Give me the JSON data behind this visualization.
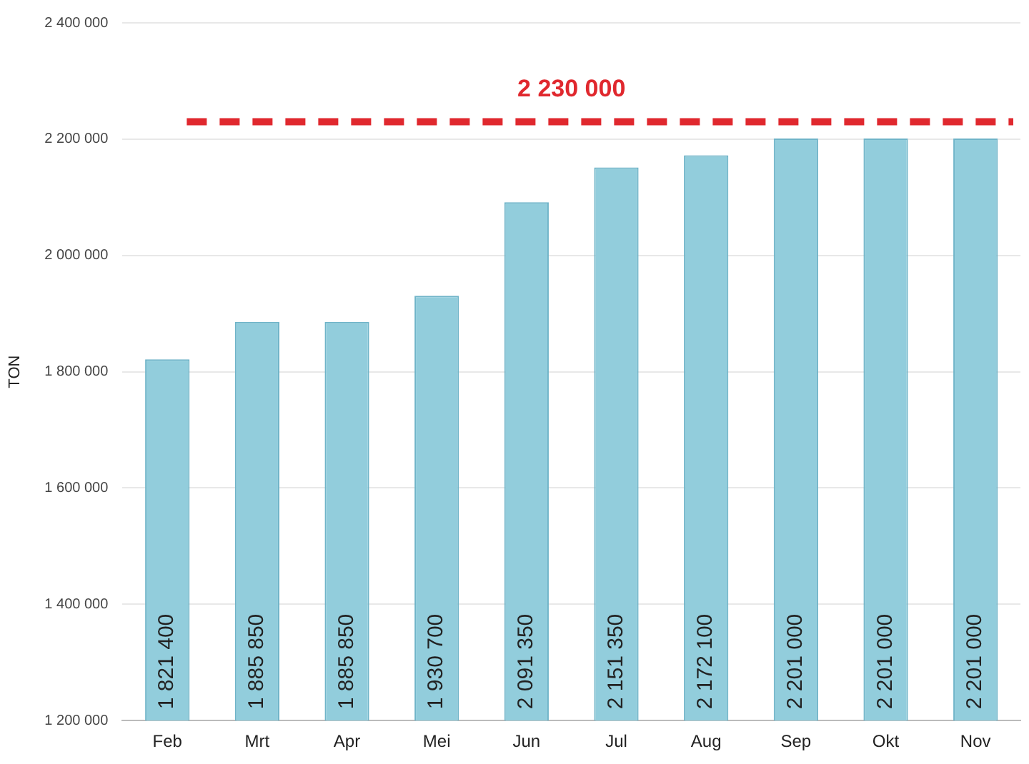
{
  "chart_data": {
    "type": "bar",
    "ylabel": "TON",
    "categories": [
      "Feb",
      "Mrt",
      "Apr",
      "Mei",
      "Jun",
      "Jul",
      "Aug",
      "Sep",
      "Okt",
      "Nov"
    ],
    "values": [
      1821400,
      1885850,
      1885850,
      1930700,
      2091350,
      2151350,
      2172100,
      2201000,
      2201000,
      2201000
    ],
    "value_labels": [
      "1 821 400",
      "1 885 850",
      "1 885 850",
      "1 930 700",
      "2 091 350",
      "2 151 350",
      "2 172 100",
      "2 201 000",
      "2 201 000",
      "2 201 000"
    ],
    "color": "#92cddc",
    "ylim": [
      1200000,
      2400000
    ],
    "yticks": [
      {
        "value": 1200000,
        "label": "1 200 000"
      },
      {
        "value": 1400000,
        "label": "1 400 000"
      },
      {
        "value": 1600000,
        "label": "1 600 000"
      },
      {
        "value": 1800000,
        "label": "1 800 000"
      },
      {
        "value": 2000000,
        "label": "2 000 000"
      },
      {
        "value": 2200000,
        "label": "2 200 000"
      },
      {
        "value": 2400000,
        "label": "2 400 000"
      }
    ],
    "ref_lines": [
      {
        "axis": "y",
        "value": 2230000,
        "label": "2 230 000",
        "color": "#e0282e",
        "line_style": "dashed"
      }
    ],
    "grid": "y",
    "legend": false
  }
}
